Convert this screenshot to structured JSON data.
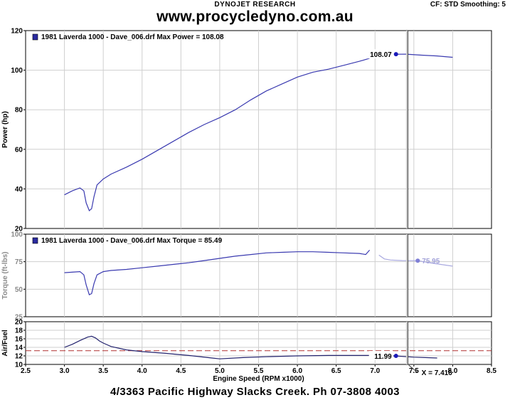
{
  "header": {
    "brand": "DYNOJET RESEARCH",
    "settings": "CF: STD  Smoothing: 5",
    "website": "www.procycledyno.com.au"
  },
  "footer": {
    "address": "4/3363 Pacific Highway Slacks Creek. Ph 07-3808 4003"
  },
  "cursor": {
    "x_readout": "X = 7.416",
    "x_value": 7.416
  },
  "colors": {
    "power": "#3a3ab0",
    "torque": "#3a3ab0",
    "torque_faded": "#a9a9e0",
    "afr": "#23236e",
    "afr_target": "#b03030",
    "cursor": "#555555"
  },
  "chart_data": [
    {
      "type": "line",
      "ylabel": "Power (hp)",
      "xlim": [
        2.5,
        8.5
      ],
      "ylim": [
        20,
        120
      ],
      "yticks": [
        20,
        40,
        60,
        80,
        100,
        120
      ],
      "grid": true,
      "legend": "1981 Laverda 1000 - Dave_006.drf Max Power = 108.08",
      "legend_position": "top-left",
      "marker_label": "108.07",
      "marker": {
        "x": 7.27,
        "y": 108.07
      },
      "series": [
        {
          "x": [
            3.0,
            3.1,
            3.2,
            3.25,
            3.28,
            3.32,
            3.35,
            3.38,
            3.42,
            3.5,
            3.6,
            3.8,
            4.0,
            4.2,
            4.4,
            4.6,
            4.8,
            5.0,
            5.2,
            5.4,
            5.6,
            5.8,
            6.0,
            6.2,
            6.4,
            6.6,
            6.8,
            6.93
          ],
          "values": [
            37,
            39,
            40.5,
            39,
            33,
            29,
            30,
            36,
            42,
            45,
            47.5,
            51,
            55,
            59.5,
            64,
            68.5,
            72.5,
            76,
            80,
            85,
            89.5,
            93,
            96.5,
            99,
            100.5,
            102.5,
            104.5,
            106
          ]
        },
        {
          "x": [
            7.27,
            7.4,
            7.6,
            7.8,
            8.0
          ],
          "values": [
            108.07,
            108.1,
            107.6,
            107.2,
            106.5
          ]
        }
      ]
    },
    {
      "type": "line",
      "ylabel": "Torque (ft-lbs)",
      "xlim": [
        2.5,
        8.5
      ],
      "ylim": [
        25,
        100
      ],
      "yticks": [
        25,
        50,
        75,
        100
      ],
      "grid": true,
      "legend": "1981 Laverda 1000 - Dave_006.drf Max Torque = 85.49",
      "legend_position": "top-left",
      "marker_label": "75.95",
      "marker": {
        "x": 7.55,
        "y": 75.95
      },
      "series": [
        {
          "x": [
            3.0,
            3.1,
            3.2,
            3.25,
            3.28,
            3.32,
            3.35,
            3.38,
            3.42,
            3.5,
            3.6,
            3.8,
            4.0,
            4.2,
            4.4,
            4.6,
            4.8,
            5.0,
            5.2,
            5.4,
            5.6,
            5.8,
            6.0,
            6.2,
            6.4,
            6.6,
            6.8,
            6.88,
            6.93
          ],
          "values": [
            65,
            65.5,
            66,
            63,
            54,
            45,
            46,
            55,
            63,
            66,
            67,
            68,
            69.5,
            71,
            72.5,
            74,
            76,
            78,
            80,
            81.5,
            83,
            83.5,
            84,
            84,
            83.5,
            83,
            82.5,
            81.5,
            85.5
          ]
        },
        {
          "x": [
            7.05,
            7.12,
            7.2,
            7.35,
            7.55,
            7.75,
            8.0
          ],
          "values": [
            81,
            77.5,
            76.5,
            76,
            75.95,
            73.5,
            71
          ]
        }
      ]
    },
    {
      "type": "line",
      "ylabel": "Air/Fuel",
      "xlim": [
        2.5,
        8.5
      ],
      "ylim": [
        10,
        20
      ],
      "yticks": [
        10,
        12,
        14,
        16,
        18,
        20
      ],
      "xticks": [
        2.5,
        3.0,
        3.5,
        4.0,
        4.5,
        5.0,
        5.5,
        6.0,
        6.5,
        7.0,
        7.5,
        8.0,
        8.5
      ],
      "xlabel": "Engine Speed (RPM x1000)",
      "grid": true,
      "marker_label": "11.99",
      "marker": {
        "x": 7.27,
        "y": 11.99
      },
      "reference_line": 13.2,
      "series": [
        {
          "x": [
            3.0,
            3.1,
            3.2,
            3.3,
            3.35,
            3.4,
            3.45,
            3.5,
            3.6,
            3.8,
            4.0,
            4.3,
            4.6,
            4.9,
            5.0,
            5.3,
            5.6,
            6.0,
            6.4,
            6.8,
            7.0,
            7.27,
            7.5,
            7.8
          ],
          "values": [
            14,
            14.7,
            15.6,
            16.4,
            16.6,
            16.2,
            15.5,
            15.0,
            14.2,
            13.4,
            13.0,
            12.6,
            12.1,
            11.5,
            11.3,
            11.6,
            11.8,
            12.0,
            12.1,
            12.1,
            12.1,
            11.99,
            11.7,
            11.5
          ]
        }
      ]
    }
  ]
}
